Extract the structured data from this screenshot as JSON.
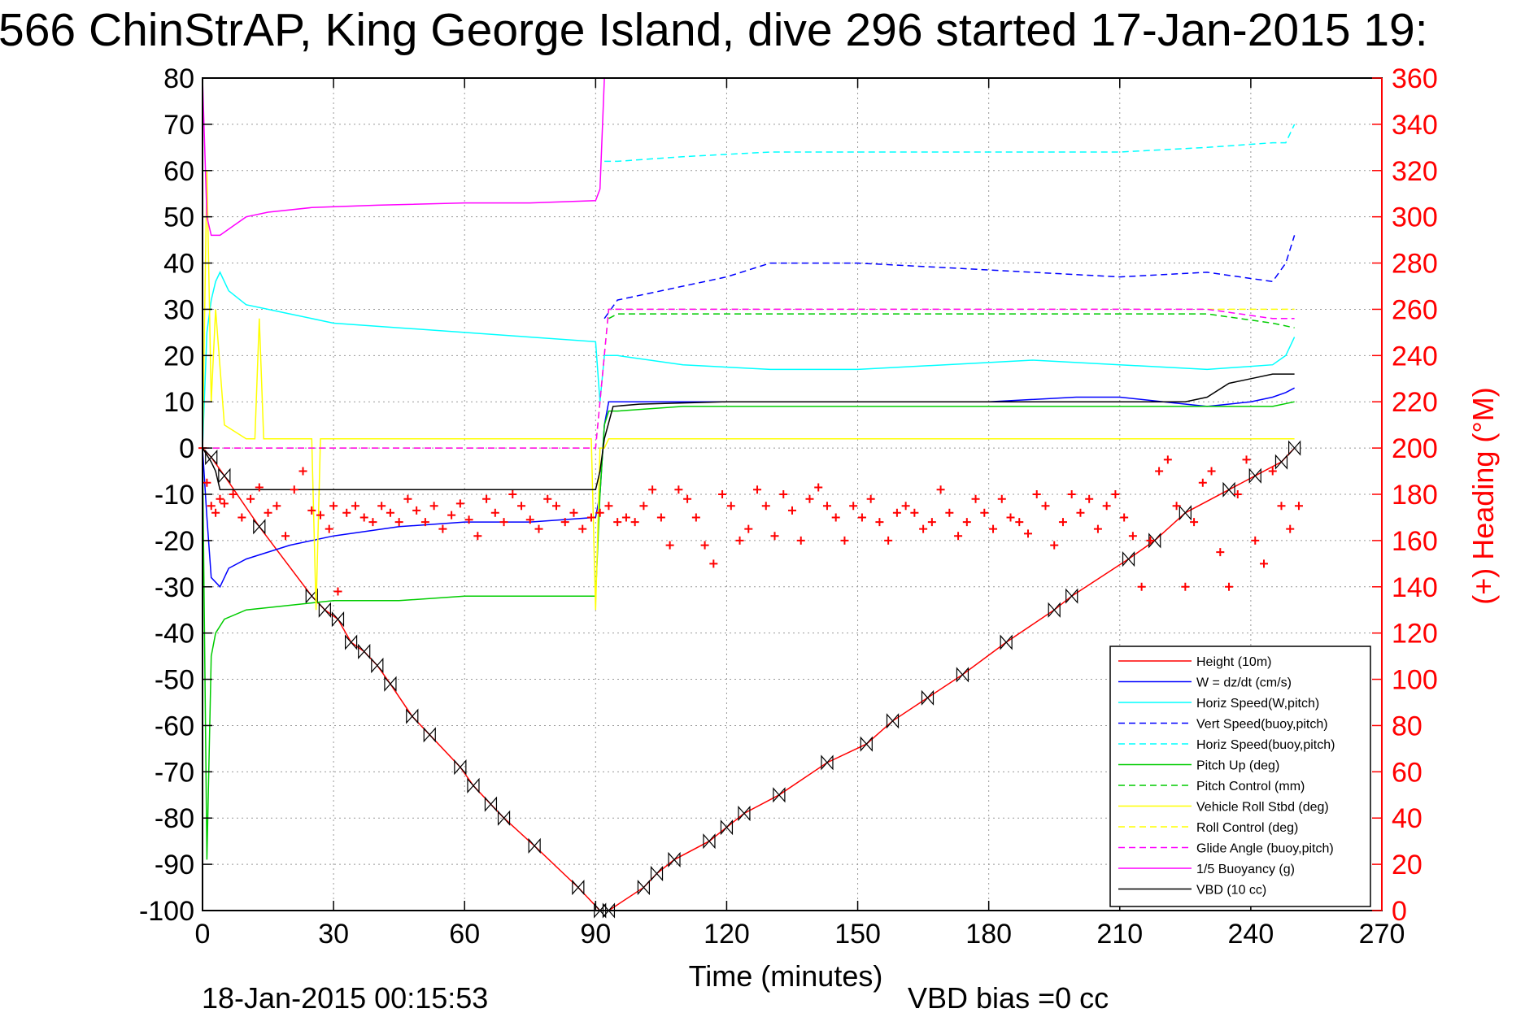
{
  "chart_data": {
    "type": "line",
    "title": "566 ChinStrAP, King George Island, dive 296 started 17-Jan-2015 19:",
    "xlabel": "Time (minutes)",
    "ylabel_right": "(+) Heading (°M)",
    "footer_date": "18-Jan-2015 00:15:53",
    "footer_bias": "VBD bias =0 cc",
    "xlim": [
      0,
      270
    ],
    "ylim": [
      -100,
      80
    ],
    "ylim_right": [
      0,
      360
    ],
    "x_ticks": [
      "0",
      "30",
      "60",
      "90",
      "120",
      "150",
      "180",
      "210",
      "240",
      "270"
    ],
    "y_ticks": [
      "80",
      "70",
      "60",
      "50",
      "40",
      "30",
      "20",
      "10",
      "0",
      "-10",
      "-20",
      "-30",
      "-40",
      "-50",
      "-60",
      "-70",
      "-80",
      "-90",
      "-100"
    ],
    "y_right_ticks": [
      "360",
      "340",
      "320",
      "300",
      "280",
      "260",
      "240",
      "220",
      "200",
      "180",
      "160",
      "140",
      "120",
      "100",
      "80",
      "60",
      "40",
      "20",
      "0"
    ],
    "grid": true,
    "legend_position": "bottom-right",
    "right_axis_color": "#ff0000",
    "legend": [
      {
        "label": "Height (10m)",
        "color": "#ff0000",
        "style": "solid"
      },
      {
        "label": "W = dz/dt (cm/s)",
        "color": "#0000ff",
        "style": "solid"
      },
      {
        "label": "Horiz Speed(W,pitch)",
        "color": "#00ffff",
        "style": "solid"
      },
      {
        "label": "Vert Speed(buoy,pitch)",
        "color": "#0000ff",
        "style": "dashed"
      },
      {
        "label": "Horiz Speed(buoy,pitch)",
        "color": "#00ffff",
        "style": "dashed"
      },
      {
        "label": "Pitch Up (deg)",
        "color": "#00cc00",
        "style": "solid"
      },
      {
        "label": "Pitch Control (mm)",
        "color": "#00cc00",
        "style": "dashed"
      },
      {
        "label": "Vehicle Roll Stbd (deg)",
        "color": "#ffff00",
        "style": "solid"
      },
      {
        "label": "Roll Control (deg)",
        "color": "#ffff00",
        "style": "dashed"
      },
      {
        "label": "Glide Angle (buoy,pitch)",
        "color": "#ff00ff",
        "style": "dashed"
      },
      {
        "label": "1/5 Buoyancy (g)",
        "color": "#ff00ff",
        "style": "solid"
      },
      {
        "label": "VBD (10 cc)",
        "color": "#000000",
        "style": "solid"
      }
    ],
    "series": [
      {
        "name": "Height (10m)",
        "color": "#ff0000",
        "style": "solid",
        "axis": "left",
        "marker": "bowtie",
        "x": [
          0,
          2,
          5,
          13,
          25,
          28,
          31,
          34,
          37,
          40,
          43,
          48,
          52,
          59,
          62,
          66,
          69,
          76,
          86,
          91,
          93,
          101,
          104,
          108,
          116,
          120,
          124,
          132,
          143,
          152,
          158,
          166,
          174,
          184,
          195,
          199,
          212,
          218,
          225,
          235,
          241,
          247,
          250
        ],
        "y": [
          0,
          -2,
          -6,
          -17,
          -32,
          -35,
          -37,
          -42,
          -44,
          -47,
          -51,
          -58,
          -62,
          -69,
          -73,
          -77,
          -80,
          -86,
          -95,
          -100,
          -100,
          -95,
          -92,
          -89,
          -85,
          -82,
          -79,
          -75,
          -68,
          -64,
          -59,
          -54,
          -49,
          -42,
          -35,
          -32,
          -24,
          -20,
          -14,
          -9,
          -6,
          -3,
          0
        ]
      },
      {
        "name": "W = dz/dt (cm/s)",
        "color": "#0000ff",
        "style": "solid",
        "axis": "left",
        "x": [
          0,
          1,
          2,
          4,
          6,
          10,
          20,
          30,
          45,
          60,
          75,
          90,
          91,
          92,
          93,
          100,
          110,
          120,
          140,
          160,
          180,
          200,
          210,
          220,
          230,
          240,
          245,
          248,
          250
        ],
        "y": [
          0,
          -15,
          -28,
          -30,
          -26,
          -24,
          -21,
          -19,
          -17,
          -16,
          -16,
          -15,
          -10,
          5,
          10,
          10,
          10,
          10,
          10,
          10,
          10,
          11,
          11,
          10,
          9,
          10,
          11,
          12,
          13
        ]
      },
      {
        "name": "Horiz Speed(W,pitch)",
        "color": "#00ffff",
        "style": "solid",
        "axis": "left",
        "x": [
          0,
          1,
          2,
          3,
          4,
          6,
          10,
          20,
          30,
          45,
          60,
          75,
          90,
          91,
          92,
          95,
          110,
          130,
          150,
          170,
          190,
          210,
          230,
          245,
          248,
          250
        ],
        "y": [
          0,
          25,
          32,
          36,
          38,
          34,
          31,
          29,
          27,
          26,
          25,
          24,
          23,
          10,
          20,
          20,
          18,
          17,
          17,
          18,
          19,
          18,
          17,
          18,
          20,
          24
        ]
      },
      {
        "name": "Vert Speed(buoy,pitch)",
        "color": "#0000ff",
        "style": "dashed",
        "axis": "left",
        "x": [
          92,
          95,
          110,
          120,
          130,
          150,
          170,
          190,
          210,
          230,
          245,
          248,
          250
        ],
        "y": [
          28,
          32,
          35,
          37,
          40,
          40,
          39,
          38,
          37,
          38,
          36,
          40,
          46
        ]
      },
      {
        "name": "Horiz Speed(buoy,pitch)",
        "color": "#00ffff",
        "style": "dashed",
        "axis": "left",
        "x": [
          92,
          95,
          110,
          130,
          150,
          170,
          190,
          210,
          230,
          245,
          248,
          250
        ],
        "y": [
          62,
          62,
          63,
          64,
          64,
          64,
          64,
          64,
          65,
          66,
          66,
          70
        ]
      },
      {
        "name": "Pitch Up (deg)",
        "color": "#00cc00",
        "style": "solid",
        "axis": "left",
        "x": [
          0,
          1,
          2,
          3,
          5,
          10,
          20,
          30,
          45,
          60,
          75,
          90,
          91,
          92,
          93,
          95,
          110,
          130,
          150,
          170,
          190,
          210,
          230,
          245,
          250
        ],
        "y": [
          0,
          -89,
          -45,
          -40,
          -37,
          -35,
          -34,
          -33,
          -33,
          -32,
          -32,
          -32,
          -10,
          5,
          8,
          8,
          9,
          9,
          9,
          9,
          9,
          9,
          9,
          9,
          10
        ]
      },
      {
        "name": "Pitch Control (mm)",
        "color": "#00cc00",
        "style": "dashed",
        "axis": "left",
        "x": [
          93,
          95,
          110,
          130,
          150,
          170,
          190,
          210,
          230,
          245,
          250
        ],
        "y": [
          28,
          29,
          29,
          29,
          29,
          29,
          29,
          29,
          29,
          27,
          26
        ]
      },
      {
        "name": "Vehicle Roll Stbd (deg)",
        "color": "#ffff00",
        "style": "solid",
        "axis": "left",
        "x": [
          0,
          1,
          2,
          3,
          5,
          10,
          12,
          13,
          14,
          20,
          25,
          26,
          27,
          30,
          45,
          60,
          75,
          89,
          90,
          91,
          92,
          93,
          110,
          130,
          150,
          170,
          190,
          210,
          230,
          245,
          250
        ],
        "y": [
          0,
          60,
          10,
          30,
          5,
          2,
          2,
          28,
          2,
          2,
          2,
          -35,
          2,
          2,
          2,
          2,
          2,
          2,
          -35,
          0,
          0,
          2,
          2,
          2,
          2,
          2,
          2,
          2,
          2,
          2,
          2
        ]
      },
      {
        "name": "Roll Control (deg)",
        "color": "#ffff00",
        "style": "dashed",
        "axis": "left",
        "x": [
          0,
          5,
          10,
          20,
          30,
          45,
          60,
          75,
          90,
          93,
          110,
          130,
          150,
          170,
          190,
          210,
          230,
          245,
          250
        ],
        "y": [
          0,
          0,
          0,
          0,
          0,
          0,
          0,
          0,
          0,
          30,
          30,
          30,
          30,
          30,
          30,
          30,
          30,
          30,
          30
        ]
      },
      {
        "name": "Glide Angle (buoy,pitch)",
        "color": "#ff00ff",
        "style": "dashed",
        "axis": "left",
        "x": [
          0,
          30,
          60,
          90,
          93,
          110,
          130,
          150,
          170,
          190,
          210,
          230,
          245,
          250
        ],
        "y": [
          0,
          0,
          0,
          0,
          30,
          30,
          30,
          30,
          30,
          30,
          30,
          30,
          28,
          28
        ]
      },
      {
        "name": "1/5 Buoyancy (g)",
        "color": "#ff00ff",
        "style": "solid",
        "axis": "left",
        "x": [
          0,
          1,
          2,
          4,
          7,
          10,
          15,
          25,
          40,
          60,
          75,
          90,
          91,
          92
        ],
        "y": [
          80,
          50,
          46,
          46,
          48,
          50,
          51,
          52,
          52.5,
          53,
          53,
          53.5,
          56,
          80
        ]
      },
      {
        "name": "VBD (10 cc)",
        "color": "#000000",
        "style": "solid",
        "axis": "left",
        "x": [
          0,
          2,
          3,
          4,
          10,
          20,
          30,
          45,
          60,
          75,
          90,
          91,
          92,
          94,
          100,
          120,
          140,
          160,
          180,
          200,
          215,
          225,
          230,
          235,
          240,
          245,
          250
        ],
        "y": [
          0,
          -3,
          -5,
          -9,
          -9,
          -9,
          -9,
          -9,
          -9,
          -9,
          -9,
          -5,
          2,
          9,
          9.5,
          10,
          10,
          10,
          10,
          10,
          10,
          10,
          11,
          14,
          15,
          16,
          16
        ]
      },
      {
        "name": "Heading",
        "color": "#ff0000",
        "style": "plus",
        "axis": "right",
        "x": [
          0,
          1,
          2,
          3,
          4,
          5,
          7,
          9,
          11,
          13,
          15,
          17,
          19,
          21,
          23,
          25,
          27,
          29,
          30,
          31,
          33,
          35,
          37,
          39,
          41,
          43,
          45,
          47,
          49,
          51,
          53,
          55,
          57,
          59,
          61,
          63,
          65,
          67,
          69,
          71,
          73,
          75,
          77,
          79,
          81,
          83,
          85,
          87,
          89,
          91,
          93,
          95,
          97,
          99,
          101,
          103,
          105,
          107,
          109,
          111,
          113,
          115,
          117,
          119,
          121,
          123,
          125,
          127,
          129,
          131,
          133,
          135,
          137,
          139,
          141,
          143,
          145,
          147,
          149,
          151,
          153,
          155,
          157,
          159,
          161,
          163,
          165,
          167,
          169,
          171,
          173,
          175,
          177,
          179,
          181,
          183,
          185,
          187,
          189,
          191,
          193,
          195,
          197,
          199,
          201,
          203,
          205,
          207,
          209,
          211,
          213,
          215,
          217,
          219,
          221,
          223,
          225,
          227,
          229,
          231,
          233,
          235,
          237,
          239,
          241,
          243,
          245,
          247,
          249,
          251
        ],
        "y": [
          200,
          185,
          175,
          172,
          178,
          176,
          180,
          170,
          178,
          183,
          172,
          175,
          162,
          182,
          190,
          173,
          171,
          165,
          175,
          138,
          172,
          175,
          170,
          168,
          175,
          172,
          168,
          178,
          173,
          168,
          175,
          165,
          171,
          176,
          169,
          162,
          178,
          172,
          168,
          180,
          175,
          169,
          165,
          178,
          175,
          168,
          172,
          165,
          170,
          172,
          175,
          168,
          170,
          168,
          175,
          182,
          170,
          158,
          182,
          178,
          170,
          158,
          150,
          180,
          175,
          160,
          165,
          182,
          175,
          162,
          180,
          173,
          160,
          178,
          183,
          175,
          170,
          160,
          175,
          170,
          178,
          168,
          160,
          172,
          175,
          172,
          165,
          168,
          182,
          172,
          162,
          168,
          178,
          172,
          165,
          178,
          170,
          168,
          163,
          180,
          175,
          158,
          168,
          180,
          172,
          178,
          165,
          175,
          180,
          170,
          162,
          140,
          160,
          190,
          195,
          175,
          140,
          168,
          185,
          190,
          155,
          140,
          180,
          195,
          160,
          150,
          190,
          175,
          165,
          175
        ]
      }
    ]
  }
}
